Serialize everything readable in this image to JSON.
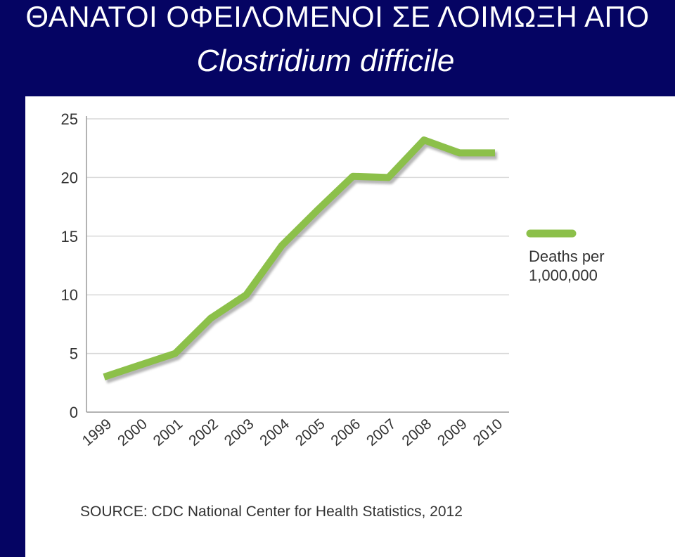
{
  "title": {
    "line1": "ΘΑΝΑΤΟΙ ΟΦΕΙΛΟΜΕΝΟΙ ΣΕ ΛΟΙΜΩΞΗ ΑΠΟ",
    "line2": "Clostridium difficile"
  },
  "chart_data": {
    "type": "line",
    "title": "ΘΑΝΑΤΟΙ ΟΦΕΙΛΟΜΕΝΟΙ ΣΕ ΛΟΙΜΩΞΗ ΑΠΟ Clostridium difficile",
    "xlabel": "",
    "ylabel": "",
    "x": [
      "1999",
      "2000",
      "2001",
      "2002",
      "2003",
      "2004",
      "2005",
      "2006",
      "2007",
      "2008",
      "2009",
      "2010"
    ],
    "series": [
      {
        "name": "Deaths per 1,000,000",
        "name_lines": [
          "Deaths per",
          "1,000,000"
        ],
        "color": "#8cc04a",
        "values": [
          3.0,
          4.0,
          5.0,
          8.0,
          10.0,
          14.2,
          17.2,
          20.1,
          20.0,
          23.2,
          22.1,
          22.1
        ]
      }
    ],
    "ylim": [
      0,
      25
    ],
    "yticks": [
      0,
      5,
      10,
      15,
      20,
      25
    ],
    "grid": true,
    "legend": "right",
    "source": "SOURCE: CDC National Center for Health Statistics, 2012"
  }
}
